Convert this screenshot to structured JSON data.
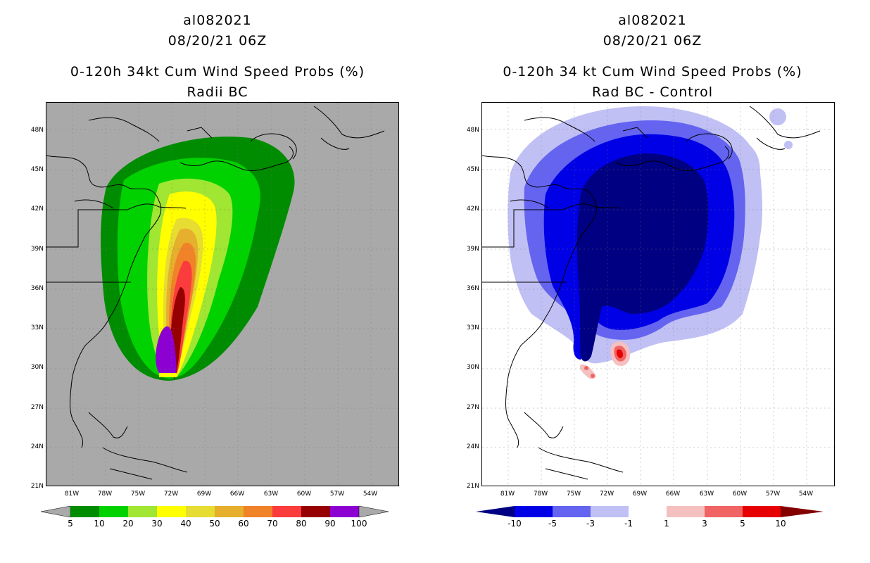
{
  "panels": [
    {
      "storm_id": "al082021",
      "datetime": "08/20/21 06Z",
      "product": "0-120h 34kt Cum Wind Speed Probs (%)",
      "subtitle": "Radii BC",
      "background": "#a9a9a9",
      "colorbar": {
        "ticks": [
          "5",
          "10",
          "20",
          "30",
          "40",
          "50",
          "60",
          "70",
          "80",
          "90",
          "100"
        ],
        "colors": [
          "#008c00",
          "#00d200",
          "#a0e632",
          "#ffff00",
          "#e6dc32",
          "#e6af2d",
          "#f08228",
          "#fa3c3c",
          "#960000",
          "#8c00d2"
        ],
        "extend_low": "#a9a9a9",
        "extend_high": "#a9a9a9"
      }
    },
    {
      "storm_id": "al082021",
      "datetime": "08/20/21 06Z",
      "product": "0-120h 34 kt Cum Wind Speed Probs (%)",
      "subtitle": "Rad BC - Control",
      "background": "#ffffff",
      "colorbar": {
        "ticks": [
          "-10",
          "-5",
          "-3",
          "-1",
          "1",
          "3",
          "5",
          "10"
        ],
        "colors": [
          "#0000e6",
          "#6464f0",
          "#c0c0f5",
          "#ffffff",
          "#f5c0c0",
          "#f06464",
          "#e60000"
        ],
        "extend_low": "#000082",
        "extend_high": "#820000"
      }
    }
  ],
  "axes": {
    "lat_labels": [
      "48N",
      "45N",
      "42N",
      "39N",
      "36N",
      "33N",
      "30N",
      "27N",
      "24N",
      "21N"
    ],
    "lon_labels": [
      "81W",
      "78W",
      "75W",
      "72W",
      "69W",
      "66W",
      "63W",
      "60W",
      "57W",
      "54W"
    ]
  },
  "chart_data": [
    {
      "type": "filled-contour-map",
      "title": "0-120h 34kt Cum Wind Speed Probs (%)",
      "subtitle": "Radii BC",
      "region": {
        "lon_range": [
          -84,
          -51
        ],
        "lat_range": [
          21,
          50
        ]
      },
      "levels": [
        5,
        10,
        20,
        30,
        40,
        50,
        60,
        70,
        80,
        90,
        100
      ],
      "max_region": "Atlantic east of the US East Coast, near 30-33N 73W"
    },
    {
      "type": "filled-contour-map",
      "title": "0-120h 34 kt Cum Wind Speed Probs (%)",
      "subtitle": "Rad BC - Control",
      "region": {
        "lon_range": [
          -84,
          -51
        ],
        "lat_range": [
          21,
          50
        ]
      },
      "levels": [
        -10,
        -5,
        -3,
        -1,
        1,
        3,
        5,
        10
      ]
    }
  ]
}
